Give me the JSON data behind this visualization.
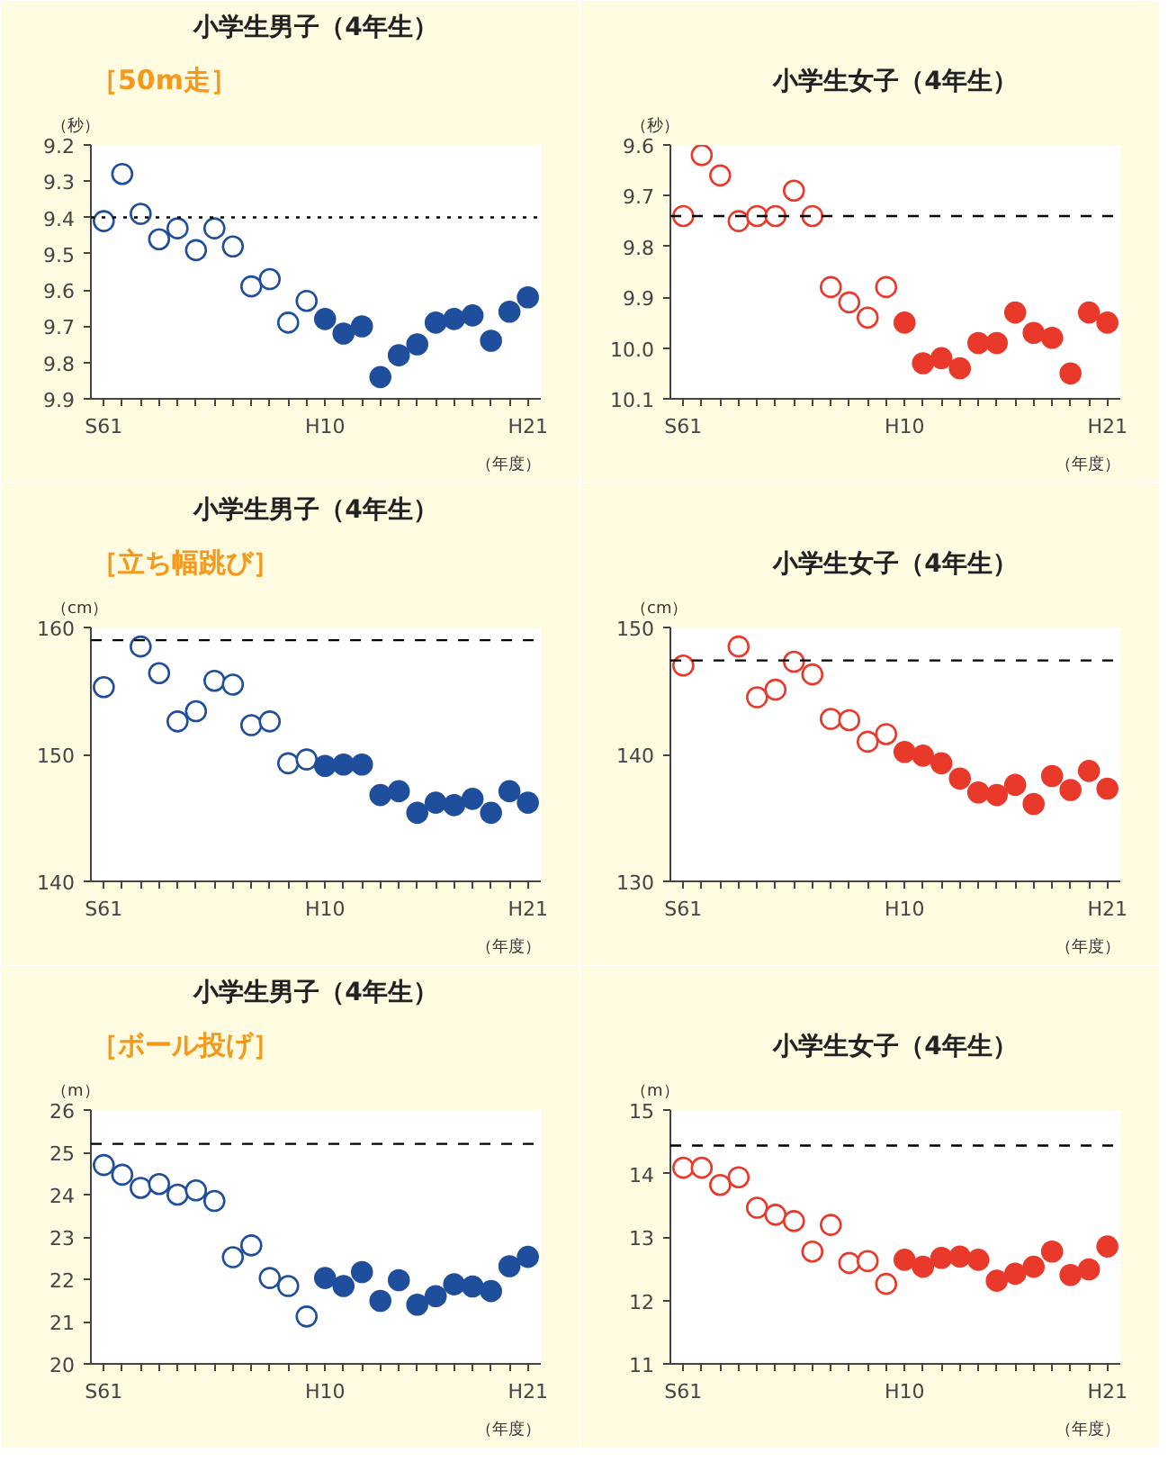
{
  "chart_data": [
    {
      "type": "scatter",
      "annotations": [
        "［50m走］"
      ],
      "title": "小学生男子（4年生）",
      "ylabel": "（秒）",
      "xlabel": "（年度）",
      "marker": "circle",
      "grid": false,
      "categories": [
        "S61",
        null,
        null,
        null,
        null,
        null,
        null,
        null,
        null,
        null,
        null,
        null,
        "H10",
        null,
        null,
        null,
        null,
        null,
        null,
        null,
        null,
        null,
        null,
        "H21"
      ],
      "ylim": [
        9.9,
        9.2
      ],
      "yticks": [
        {
          "value": 9.2,
          "label": "9.2"
        },
        {
          "value": 9.3,
          "label": "9.3"
        },
        {
          "value": 9.4,
          "label": "9.4"
        },
        {
          "value": 9.5,
          "label": "9.5"
        },
        {
          "value": 9.6,
          "label": "9.6"
        },
        {
          "value": 9.7,
          "label": "9.7"
        },
        {
          "value": 9.8,
          "label": "9.8"
        },
        {
          "value": 9.9,
          "label": "9.9"
        }
      ],
      "ref_lines": [
        {
          "axis": "y",
          "value": 9.4,
          "line_style": "dotted",
          "color": "#000000"
        }
      ],
      "series": [
        {
          "color": "#1f4e9c",
          "marker": "circle_open",
          "values": [
            9.41,
            9.28,
            9.39,
            9.46,
            9.43,
            9.49,
            9.43,
            9.48,
            9.59,
            9.57,
            9.69,
            9.63,
            null,
            null,
            null,
            null,
            null,
            null,
            null,
            null,
            null,
            null,
            null,
            null
          ]
        },
        {
          "color": "#1f4e9c",
          "values": [
            null,
            null,
            null,
            null,
            null,
            null,
            null,
            null,
            null,
            null,
            null,
            null,
            9.68,
            9.72,
            9.7,
            9.84,
            9.78,
            9.75,
            9.69,
            9.68,
            9.67,
            9.74,
            9.66,
            9.62
          ]
        }
      ]
    },
    {
      "type": "scatter",
      "title": "小学生女子（4年生）",
      "ylabel": "（秒）",
      "xlabel": "（年度）",
      "marker": "circle",
      "grid": false,
      "categories": [
        "S61",
        null,
        null,
        null,
        null,
        null,
        null,
        null,
        null,
        null,
        null,
        null,
        "H10",
        null,
        null,
        null,
        null,
        null,
        null,
        null,
        null,
        null,
        null,
        "H21"
      ],
      "ylim": [
        10.1,
        9.6
      ],
      "yticks": [
        {
          "value": 9.6,
          "label": "9.6"
        },
        {
          "value": 9.7,
          "label": "9.7"
        },
        {
          "value": 9.8,
          "label": "9.8"
        },
        {
          "value": 9.9,
          "label": "9.9"
        },
        {
          "value": 10.0,
          "label": "10.0"
        },
        {
          "value": 10.1,
          "label": "10.1"
        }
      ],
      "ref_lines": [
        {
          "axis": "y",
          "value": 9.74,
          "line_style": "dashed",
          "color": "#000000"
        }
      ],
      "series": [
        {
          "color": "#e8392a",
          "marker": "circle_open",
          "values": [
            9.74,
            9.62,
            9.66,
            9.75,
            9.74,
            9.74,
            9.69,
            9.74,
            9.88,
            9.91,
            9.94,
            9.88,
            null,
            null,
            null,
            null,
            null,
            null,
            null,
            null,
            null,
            null,
            null,
            null
          ]
        },
        {
          "color": "#e8392a",
          "values": [
            null,
            null,
            null,
            null,
            null,
            null,
            null,
            null,
            null,
            null,
            null,
            null,
            9.95,
            10.03,
            10.02,
            10.04,
            9.99,
            9.99,
            9.93,
            9.97,
            9.98,
            10.05,
            9.93,
            9.95
          ]
        }
      ]
    },
    {
      "type": "scatter",
      "annotations": [
        "［立ち幅跳び］"
      ],
      "title": "小学生男子（4年生）",
      "ylabel": "（cm）",
      "xlabel": "（年度）",
      "marker": "circle",
      "grid": false,
      "categories": [
        "S61",
        null,
        null,
        null,
        null,
        null,
        null,
        null,
        null,
        null,
        null,
        null,
        "H10",
        null,
        null,
        null,
        null,
        null,
        null,
        null,
        null,
        null,
        null,
        "H21"
      ],
      "ylim": [
        140,
        160
      ],
      "yticks": [
        140,
        150,
        160
      ],
      "ref_lines": [
        {
          "axis": "y",
          "value": 159.0,
          "line_style": "dashed",
          "color": "#000000"
        }
      ],
      "series": [
        {
          "color": "#1f4e9c",
          "marker": "circle_open",
          "values": [
            155.3,
            null,
            158.5,
            156.4,
            152.6,
            153.4,
            155.8,
            155.5,
            152.3,
            152.6,
            149.3,
            149.6,
            null,
            null,
            null,
            null,
            null,
            null,
            null,
            null,
            null,
            null,
            null,
            null
          ]
        },
        {
          "color": "#1f4e9c",
          "values": [
            null,
            null,
            null,
            null,
            null,
            null,
            null,
            null,
            null,
            null,
            null,
            null,
            149.1,
            149.2,
            149.2,
            146.8,
            147.1,
            145.4,
            146.2,
            146.0,
            146.5,
            145.4,
            147.1,
            146.2
          ]
        }
      ]
    },
    {
      "type": "scatter",
      "title": "小学生女子（4年生）",
      "ylabel": "（cm）",
      "xlabel": "（年度）",
      "marker": "circle",
      "grid": false,
      "categories": [
        "S61",
        null,
        null,
        null,
        null,
        null,
        null,
        null,
        null,
        null,
        null,
        null,
        "H10",
        null,
        null,
        null,
        null,
        null,
        null,
        null,
        null,
        null,
        null,
        "H21"
      ],
      "ylim": [
        130,
        150
      ],
      "yticks": [
        130,
        140,
        150
      ],
      "ref_lines": [
        {
          "axis": "y",
          "value": 147.4,
          "line_style": "dashed",
          "color": "#000000"
        }
      ],
      "series": [
        {
          "color": "#e8392a",
          "marker": "circle_open",
          "values": [
            147.0,
            null,
            null,
            148.5,
            144.5,
            145.1,
            147.3,
            146.3,
            142.8,
            142.7,
            141.0,
            141.6,
            null,
            null,
            null,
            null,
            null,
            null,
            null,
            null,
            null,
            null,
            null,
            null
          ]
        },
        {
          "color": "#e8392a",
          "values": [
            null,
            null,
            null,
            null,
            null,
            null,
            null,
            null,
            null,
            null,
            null,
            null,
            140.2,
            139.9,
            139.3,
            138.1,
            137.0,
            136.8,
            137.6,
            136.1,
            138.3,
            137.2,
            138.7,
            137.3
          ]
        }
      ]
    },
    {
      "type": "scatter",
      "annotations": [
        "［ボール投げ］"
      ],
      "title": "小学生男子（4年生）",
      "ylabel": "（m）",
      "xlabel": "（年度）",
      "marker": "circle",
      "grid": false,
      "categories": [
        "S61",
        null,
        null,
        null,
        null,
        null,
        null,
        null,
        null,
        null,
        null,
        null,
        "H10",
        null,
        null,
        null,
        null,
        null,
        null,
        null,
        null,
        null,
        null,
        "H21"
      ],
      "ylim": [
        20,
        26
      ],
      "yticks": [
        20,
        21,
        22,
        23,
        24,
        25,
        26
      ],
      "ref_lines": [
        {
          "axis": "y",
          "value": 25.2,
          "line_style": "dashed",
          "color": "#000000"
        }
      ],
      "series": [
        {
          "color": "#1f4e9c",
          "marker": "circle_open",
          "values": [
            24.7,
            24.47,
            24.16,
            24.25,
            24.0,
            24.1,
            23.85,
            22.52,
            22.8,
            22.03,
            21.84,
            21.12,
            null,
            null,
            null,
            null,
            null,
            null,
            null,
            null,
            null,
            null,
            null,
            null
          ]
        },
        {
          "color": "#1f4e9c",
          "values": [
            null,
            null,
            null,
            null,
            null,
            null,
            null,
            null,
            null,
            null,
            null,
            null,
            22.03,
            21.84,
            22.17,
            21.49,
            21.98,
            21.4,
            21.6,
            21.88,
            21.83,
            21.72,
            22.31,
            22.53
          ]
        }
      ]
    },
    {
      "type": "scatter",
      "title": "小学生女子（4年生）",
      "ylabel": "（m）",
      "xlabel": "（年度）",
      "marker": "circle",
      "grid": false,
      "categories": [
        "S61",
        null,
        null,
        null,
        null,
        null,
        null,
        null,
        null,
        null,
        null,
        null,
        "H10",
        null,
        null,
        null,
        null,
        null,
        null,
        null,
        null,
        null,
        null,
        "H21"
      ],
      "ylim": [
        11,
        15
      ],
      "yticks": [
        11,
        12,
        13,
        14,
        15
      ],
      "ref_lines": [
        {
          "axis": "y",
          "value": 14.44,
          "line_style": "dashed",
          "color": "#000000"
        }
      ],
      "series": [
        {
          "color": "#e8392a",
          "marker": "circle_open",
          "values": [
            14.09,
            14.09,
            13.82,
            13.94,
            13.46,
            13.35,
            13.25,
            12.77,
            13.19,
            12.59,
            12.62,
            12.26,
            null,
            null,
            null,
            null,
            null,
            null,
            null,
            null,
            null,
            null,
            null,
            null
          ]
        },
        {
          "color": "#e8392a",
          "values": [
            null,
            null,
            null,
            null,
            null,
            null,
            null,
            null,
            null,
            null,
            null,
            null,
            12.64,
            12.53,
            12.67,
            12.69,
            12.64,
            12.31,
            12.42,
            12.53,
            12.77,
            12.4,
            12.49,
            12.85
          ]
        }
      ]
    }
  ]
}
